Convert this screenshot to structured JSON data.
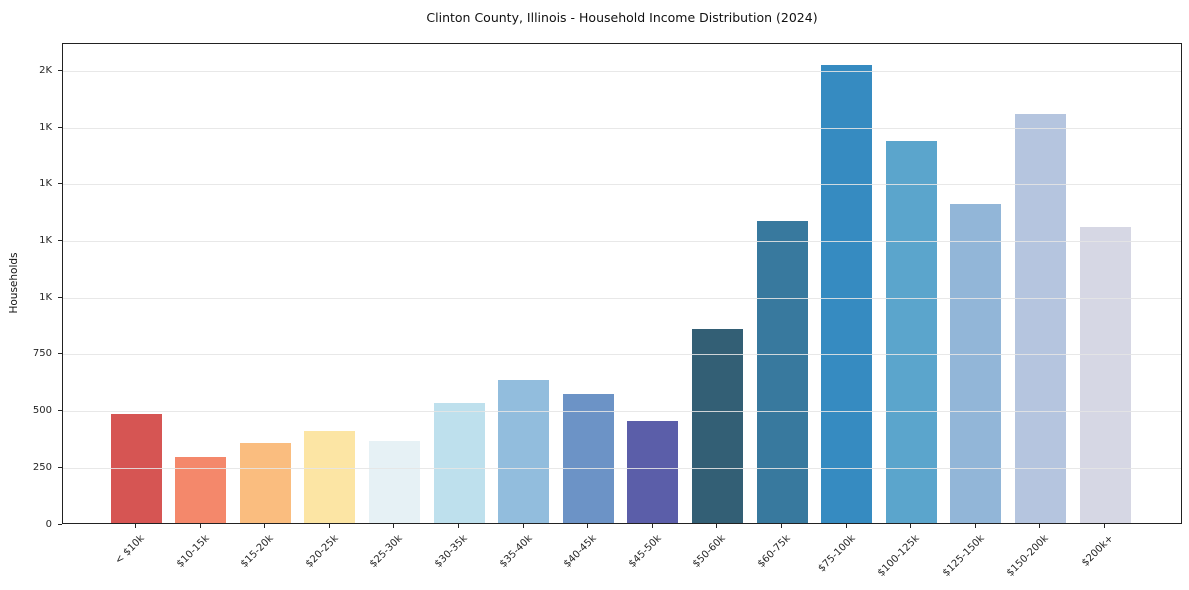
{
  "chart_data": {
    "type": "bar",
    "title": "Clinton County, Illinois - Household Income Distribution (2024)",
    "xlabel": "",
    "ylabel": "Households",
    "categories": [
      "< $10k",
      "$10-15k",
      "$15-20k",
      "$20-25k",
      "$25-30k",
      "$30-35k",
      "$35-40k",
      "$40-45k",
      "$45-50k",
      "$50-60k",
      "$60-75k",
      "$75-100k",
      "$100-125k",
      "$125-150k",
      "$150-200k",
      "$200k+"
    ],
    "values": [
      480,
      290,
      355,
      405,
      360,
      530,
      630,
      570,
      450,
      855,
      1330,
      2020,
      1685,
      1405,
      1805,
      1305
    ],
    "bar_colors": [
      "#d65553",
      "#f4886b",
      "#fabd7f",
      "#fce5a4",
      "#e6f1f5",
      "#bee0ed",
      "#92bddd",
      "#6c93c6",
      "#5b5ea9",
      "#335f75",
      "#38799e",
      "#368bc1",
      "#5ba5cc",
      "#92b6d8",
      "#b5c5df",
      "#d6d7e4"
    ],
    "y_ticks": [
      {
        "value": 0,
        "label": "0"
      },
      {
        "value": 250,
        "label": "250"
      },
      {
        "value": 500,
        "label": "500"
      },
      {
        "value": 750,
        "label": "750"
      },
      {
        "value": 1000,
        "label": "1K"
      },
      {
        "value": 1250,
        "label": "1K"
      },
      {
        "value": 1500,
        "label": "1K"
      },
      {
        "value": 1750,
        "label": "1K"
      },
      {
        "value": 2000,
        "label": "2K"
      }
    ],
    "ylim": [
      0,
      2121
    ],
    "x_tick_rotation": 45,
    "grid": "horizontal",
    "grid_color": "#e5e5e5",
    "spine_color": "#222222",
    "tick_color": "#262626",
    "background": "#ffffff",
    "legend": "none"
  }
}
